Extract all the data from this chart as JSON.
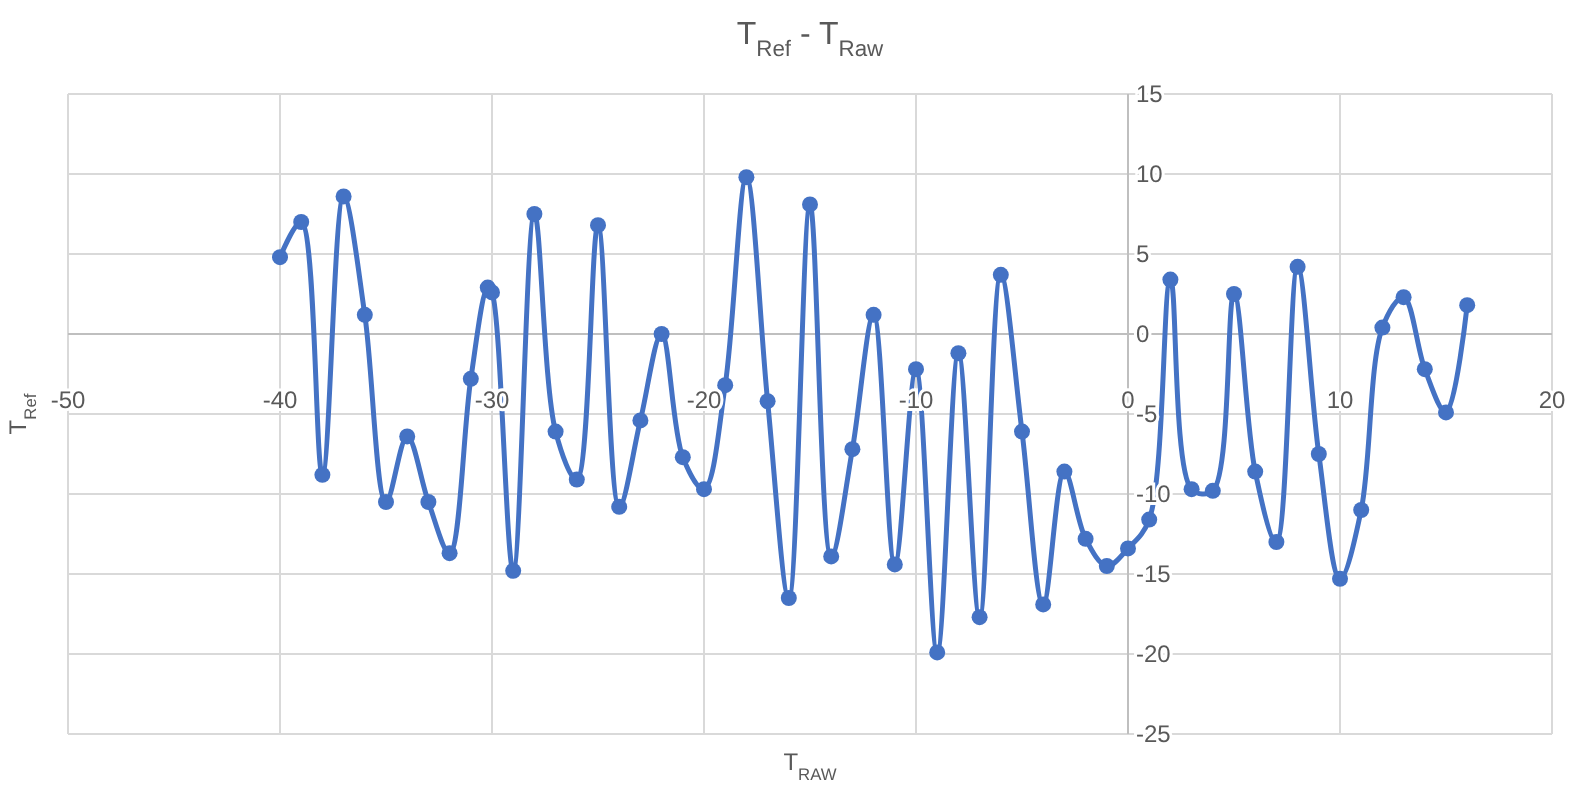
{
  "chart_data": {
    "type": "line",
    "title": "T$_{Ref}$ - T$_{Raw}$",
    "xlabel": "T$_{RAW}$",
    "ylabel": "T$_{Ref}$",
    "x": [
      -40,
      -39,
      -38,
      -37,
      -36,
      -35,
      -34,
      -33,
      -32,
      -31,
      -30.2,
      -30,
      -29,
      -28,
      -27,
      -26,
      -25,
      -24,
      -23,
      -22,
      -21,
      -20,
      -19,
      -18,
      -17,
      -16,
      -15,
      -14,
      -13,
      -12,
      -11,
      -10,
      -9,
      -8,
      -7,
      -6,
      -5,
      -4,
      -3,
      -2,
      -1,
      0,
      1,
      2,
      3,
      4,
      5,
      6,
      7,
      8,
      9,
      10,
      11,
      12,
      13,
      14,
      15,
      16
    ],
    "series": [
      {
        "color": "#4472c4",
        "values": [
          4.8,
          7,
          -8.8,
          8.6,
          1.2,
          -10.5,
          -6.4,
          -10.5,
          -13.7,
          -2.8,
          2.9,
          2.6,
          -14.8,
          7.5,
          -6.1,
          -9.1,
          6.8,
          -10.8,
          -5.4,
          0,
          -7.7,
          -9.7,
          -3.2,
          9.8,
          -4.2,
          -16.5,
          8.1,
          -13.9,
          -7.2,
          1.2,
          -14.4,
          -2.2,
          -19.9,
          -1.2,
          -17.7,
          3.7,
          -6.1,
          -16.9,
          -8.6,
          -12.8,
          -14.5,
          -13.4,
          -11.6,
          3.4,
          -9.7,
          -9.8,
          2.5,
          -8.6,
          -13,
          4.2,
          -7.5,
          -15.3,
          -11,
          0.4,
          2.3,
          -2.2,
          -4.9,
          1.8
        ]
      }
    ],
    "xlim": [
      -50,
      20
    ],
    "xticks": [
      -50,
      -40,
      -30,
      -20,
      -10,
      0,
      10,
      20
    ],
    "ylim": [
      -25,
      15
    ],
    "yticks": [
      -25,
      -20,
      -15,
      -10,
      -5,
      0,
      5,
      10,
      15
    ],
    "grid": true,
    "marker": "circle",
    "line_style": "solid"
  }
}
